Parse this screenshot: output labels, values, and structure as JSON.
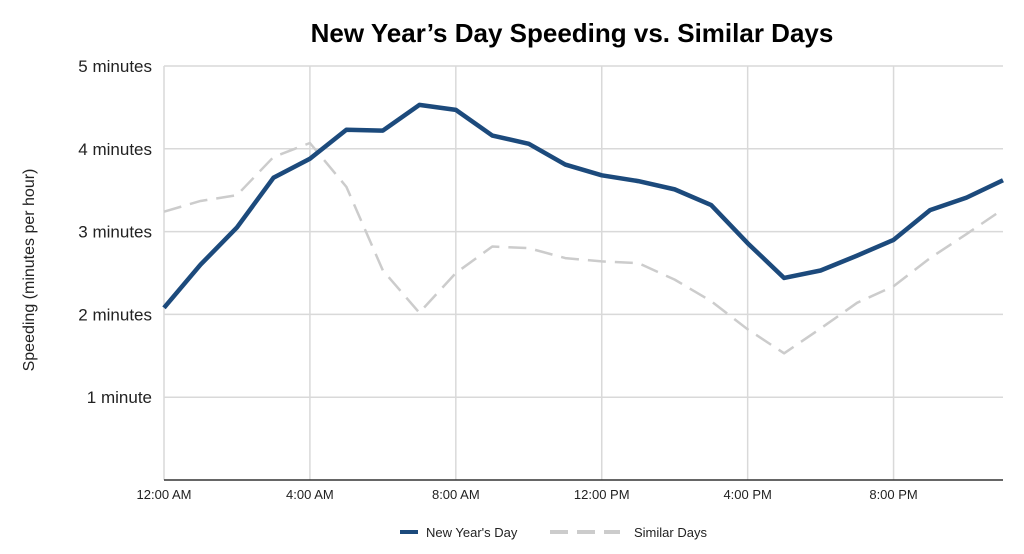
{
  "chart_data": {
    "type": "line",
    "title": "New Year’s Day Speeding vs. Similar Days",
    "xlabel": "",
    "ylabel": "Speeding (minutes per hour)",
    "x": [
      0,
      1,
      2,
      3,
      4,
      5,
      6,
      7,
      8,
      9,
      10,
      11,
      12,
      13,
      14,
      15,
      16,
      17,
      18,
      19,
      20,
      21,
      22,
      23
    ],
    "x_unit": "hour of day",
    "xlim": [
      0,
      23
    ],
    "ylim": [
      0,
      5
    ],
    "x_ticks": [
      {
        "value": 0,
        "label": "12:00 AM"
      },
      {
        "value": 4,
        "label": "4:00 AM"
      },
      {
        "value": 8,
        "label": "8:00 AM"
      },
      {
        "value": 12,
        "label": "12:00 PM"
      },
      {
        "value": 16,
        "label": "4:00 PM"
      },
      {
        "value": 20,
        "label": "8:00 PM"
      }
    ],
    "y_ticks": [
      {
        "value": 1,
        "label": "1 minute"
      },
      {
        "value": 2,
        "label": "2 minutes"
      },
      {
        "value": 3,
        "label": "3 minutes"
      },
      {
        "value": 4,
        "label": "4 minutes"
      },
      {
        "value": 5,
        "label": "5 minutes"
      }
    ],
    "grid": true,
    "legend_position": "bottom",
    "series": [
      {
        "name": "New Year's Day",
        "color": "#1c4a7c",
        "style": "solid",
        "values": [
          2.08,
          2.6,
          3.05,
          3.65,
          3.88,
          4.23,
          4.22,
          4.53,
          4.47,
          4.16,
          4.06,
          3.81,
          3.68,
          3.61,
          3.51,
          3.32,
          2.86,
          2.44,
          2.53,
          2.71,
          2.9,
          3.26,
          3.41,
          3.62
        ]
      },
      {
        "name": "Similar Days",
        "color": "#cccccc",
        "style": "dashed",
        "values": [
          3.24,
          3.37,
          3.44,
          3.9,
          4.07,
          3.54,
          2.53,
          2.02,
          2.5,
          2.82,
          2.8,
          2.68,
          2.64,
          2.62,
          2.42,
          2.16,
          1.82,
          1.53,
          1.83,
          2.14,
          2.34,
          2.68,
          2.97,
          3.27
        ]
      }
    ]
  }
}
